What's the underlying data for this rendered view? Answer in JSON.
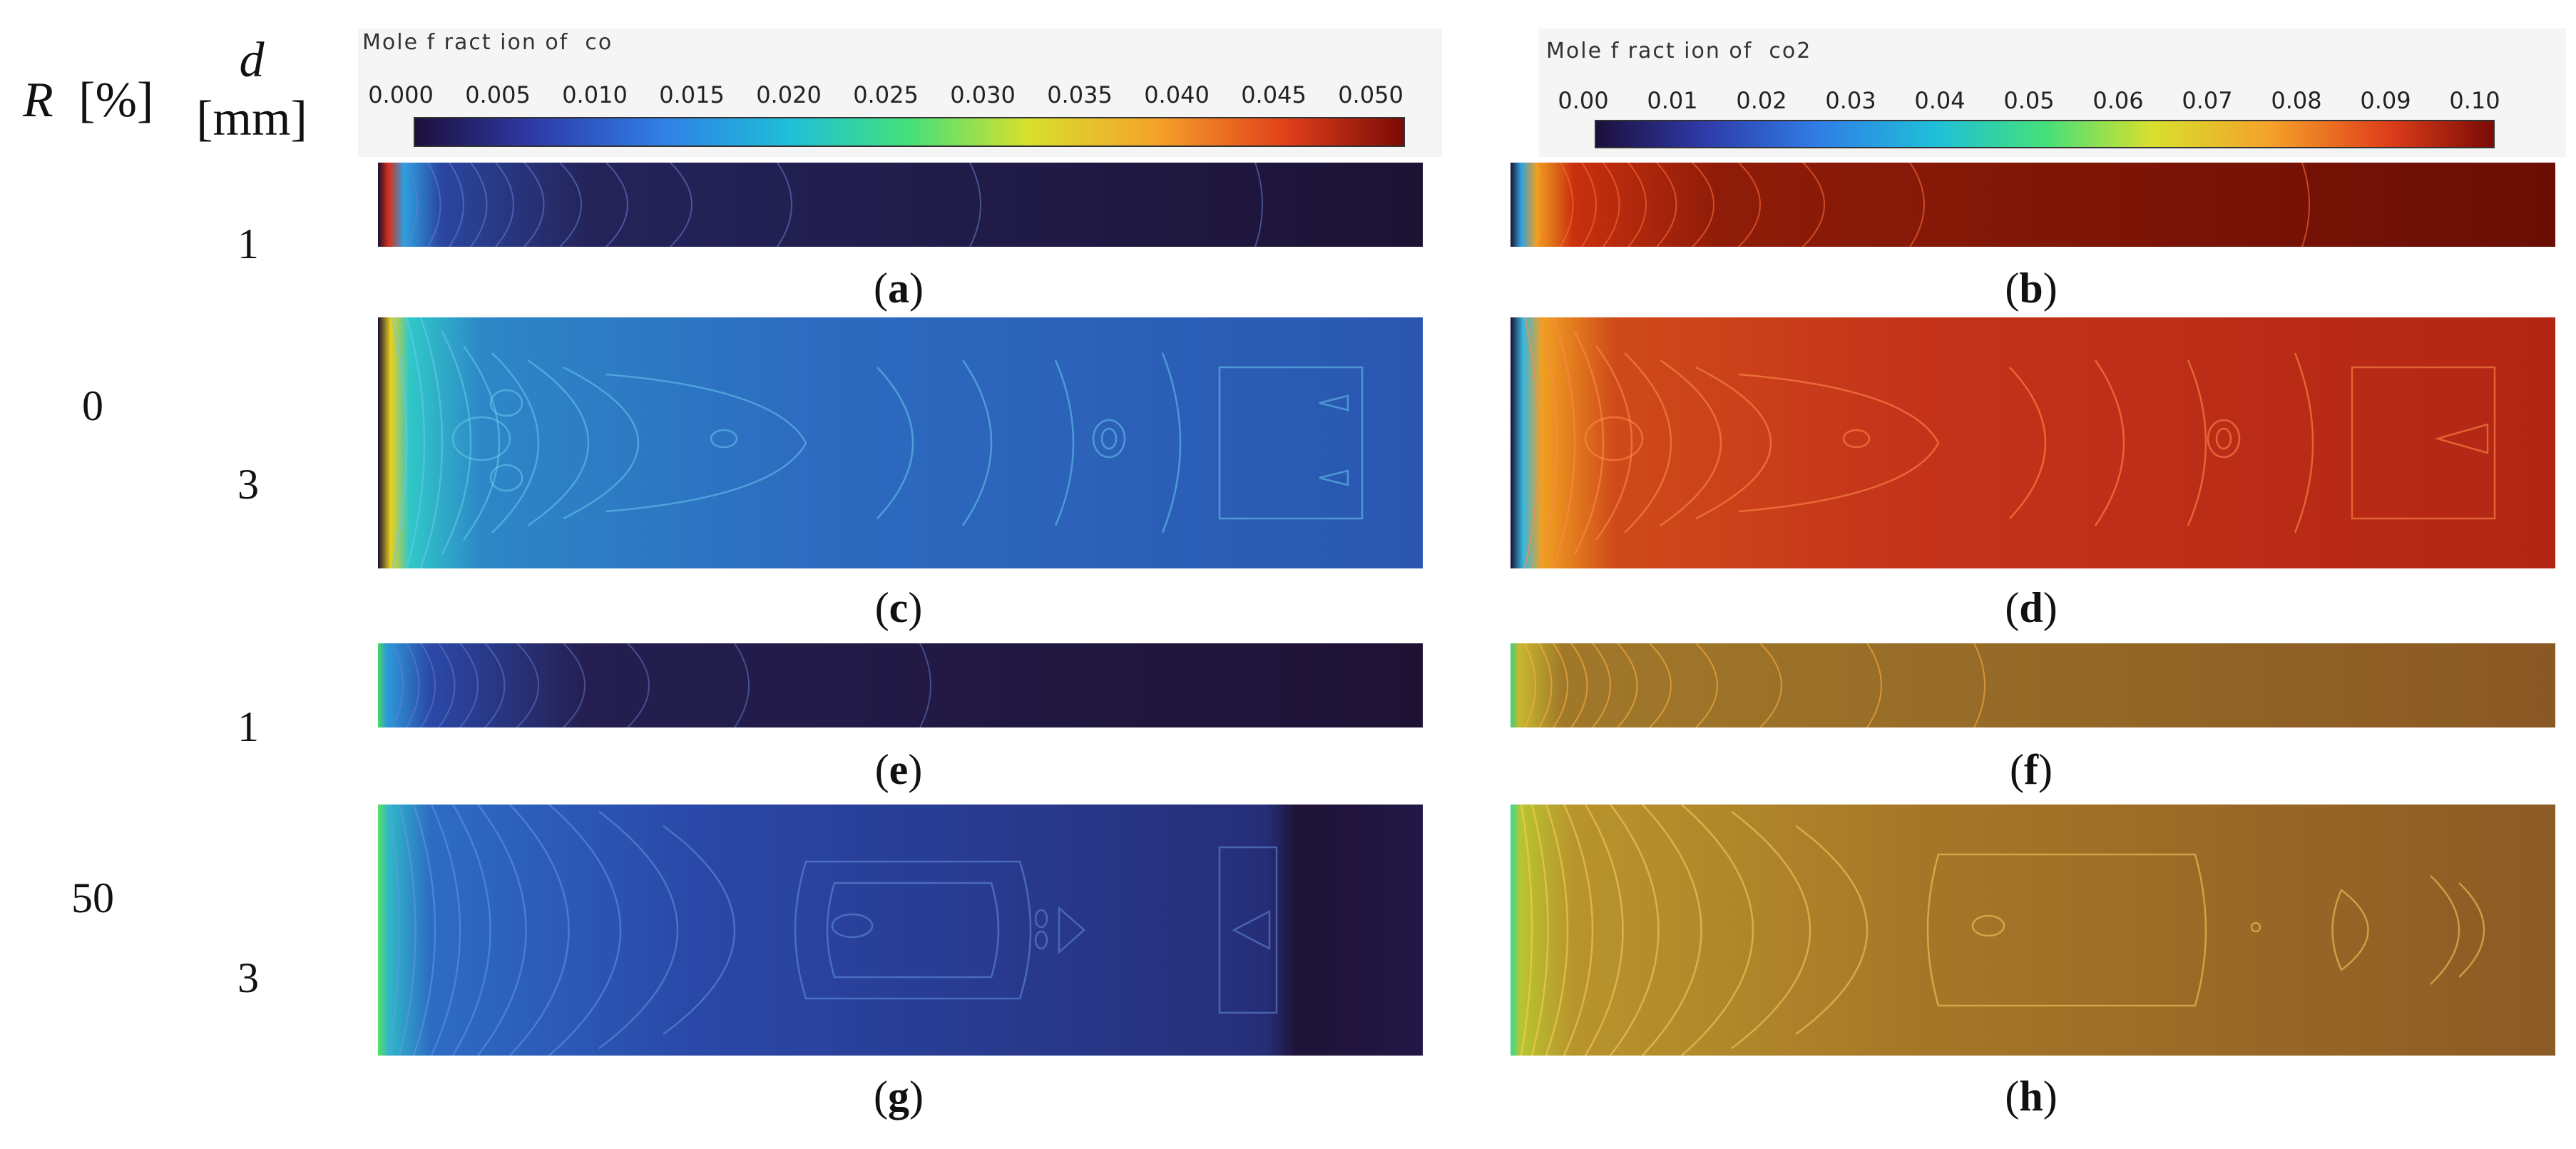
{
  "header": {
    "r_symbol": "R",
    "r_unit": "[%]",
    "d_symbol": "d",
    "d_unit": "[mm]"
  },
  "rows": [
    {
      "r_value": "0",
      "d_values": [
        "1",
        "3"
      ]
    },
    {
      "r_value": "50",
      "d_values": [
        "1",
        "3"
      ]
    }
  ],
  "colorbars": {
    "co": {
      "title": "Mole f ract ion of  co",
      "ticks": [
        "0.000",
        "0.005",
        "0.010",
        "0.015",
        "0.020",
        "0.025",
        "0.030",
        "0.035",
        "0.040",
        "0.045",
        "0.050"
      ]
    },
    "co2": {
      "title": "Mole f ract ion of  co2",
      "ticks": [
        "0.00",
        "0.01",
        "0.02",
        "0.03",
        "0.04",
        "0.05",
        "0.06",
        "0.07",
        "0.08",
        "0.09",
        "0.10"
      ]
    }
  },
  "panels": [
    {
      "label": "a",
      "paren_open": "(",
      "paren_close": ")"
    },
    {
      "label": "b",
      "paren_open": "(",
      "paren_close": ")"
    },
    {
      "label": "c",
      "paren_open": "(",
      "paren_close": ")"
    },
    {
      "label": "d",
      "paren_open": "(",
      "paren_close": ")"
    },
    {
      "label": "e",
      "paren_open": "(",
      "paren_close": ")"
    },
    {
      "label": "f",
      "paren_open": "(",
      "paren_close": ")"
    },
    {
      "label": "g",
      "paren_open": "(",
      "paren_close": ")"
    },
    {
      "label": "h",
      "paren_open": "(",
      "paren_close": ")"
    }
  ],
  "colors": {
    "co_dark": "#1e1236",
    "co_blue": "#2a4fb5",
    "co2_red": "#8b1a08",
    "co2_orange": "#8a6a28"
  }
}
